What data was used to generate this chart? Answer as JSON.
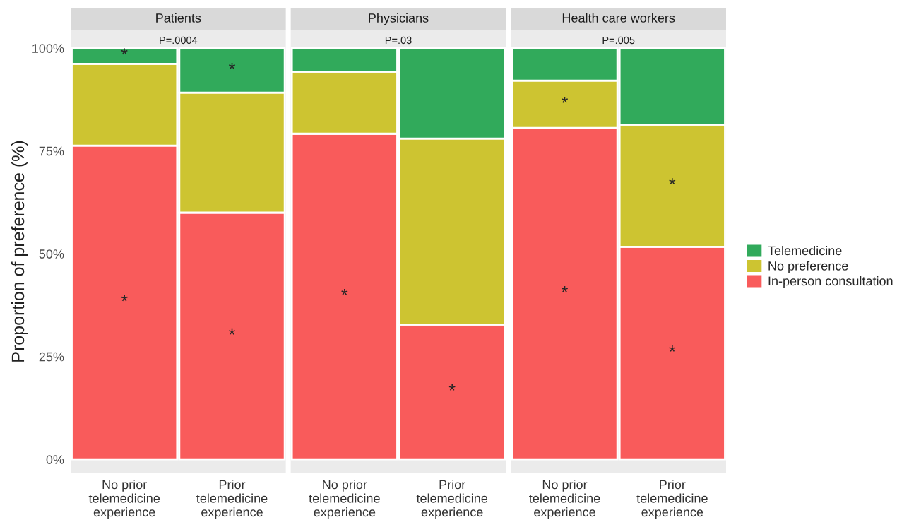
{
  "chart_data": [
    {
      "type": "bar",
      "stacked": true,
      "title": "Patients",
      "subtitle": "P=.0004",
      "ylabel": "Proportion of preference (%)",
      "legend": "right",
      "categories": [
        "No prior\ntelemedicine\nexperience",
        "Prior\ntelemedicine\nexperience"
      ],
      "series": [
        {
          "name": "In-person consultation",
          "color": "#f95b5b",
          "values": [
            76.3,
            60.0
          ],
          "value_labels": [
            "*",
            "*"
          ]
        },
        {
          "name": "No preference",
          "color": "#cdc431",
          "values": [
            19.9,
            29.2
          ]
        },
        {
          "name": "Telemedicine",
          "color": "#31aa5b",
          "values": [
            3.8,
            10.8
          ],
          "value_labels": [
            "*",
            "*"
          ]
        }
      ],
      "ylim": [
        -3.4,
        104.5
      ],
      "yticks": [
        {
          "value": 0,
          "label": "0%"
        },
        {
          "value": 25,
          "label": "25%"
        },
        {
          "value": 50,
          "label": "50%"
        },
        {
          "value": 75,
          "label": "75%"
        },
        {
          "value": 100,
          "label": "100%"
        }
      ]
    },
    {
      "type": "bar",
      "stacked": true,
      "title": "Physicians",
      "subtitle": "P=.03",
      "categories": [
        "No prior\ntelemedicine\nexperience",
        "Prior\ntelemedicine\nexperience"
      ],
      "series": [
        {
          "color": "#f95b5b",
          "values": [
            79.2,
            32.8
          ],
          "value_labels": [
            "*",
            "*"
          ]
        },
        {
          "color": "#cdc431",
          "values": [
            15.1,
            45.2
          ]
        },
        {
          "color": "#31aa5b",
          "values": [
            5.7,
            22.0
          ]
        }
      ],
      "ylim": [
        -3.4,
        104.5
      ],
      "tick_labels": "x"
    },
    {
      "type": "bar",
      "stacked": true,
      "title": "Health care workers",
      "subtitle": "P=.005",
      "categories": [
        "No prior\ntelemedicine\nexperience",
        "Prior\ntelemedicine\nexperience"
      ],
      "series": [
        {
          "color": "#f95b5b",
          "values": [
            80.6,
            51.7
          ],
          "value_labels": [
            "*",
            "*"
          ]
        },
        {
          "color": "#cdc431",
          "values": [
            11.5,
            29.7
          ],
          "value_labels": [
            "*",
            "*"
          ]
        },
        {
          "color": "#31aa5b",
          "values": [
            7.9,
            18.6
          ]
        }
      ],
      "ylim": [
        -3.4,
        104.5
      ],
      "tick_labels": "x"
    }
  ]
}
